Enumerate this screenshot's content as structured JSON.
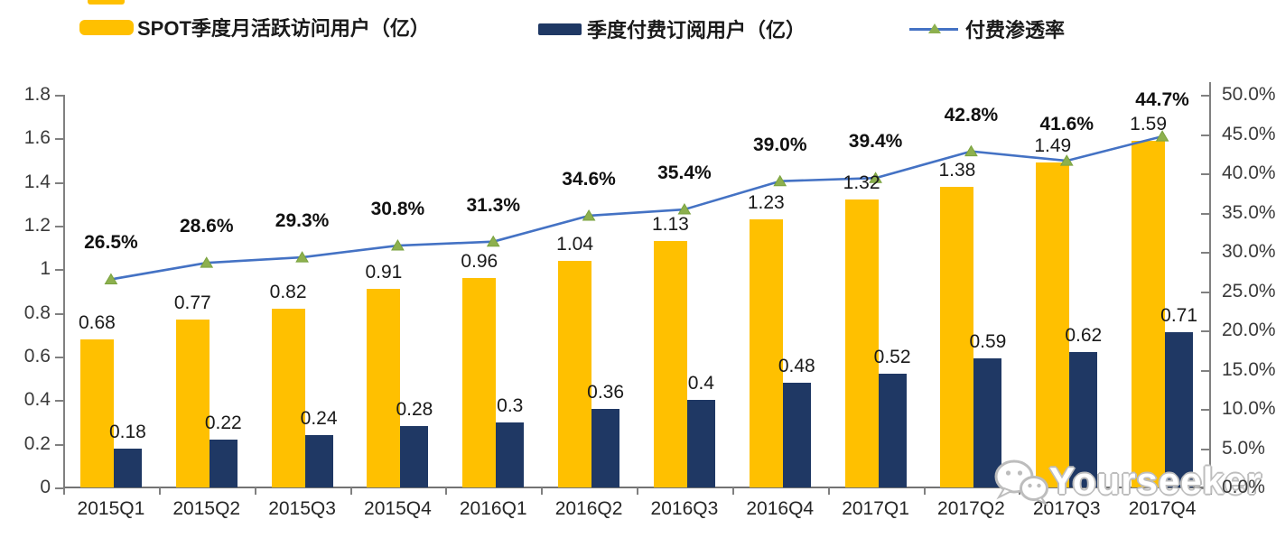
{
  "legend": {
    "items": [
      {
        "label": "SPOT季度月活跃访问用户（亿）",
        "swatch": "yellow-bar-swatch",
        "color": "#FFC000"
      },
      {
        "label": "季度付费订阅用户（亿）",
        "swatch": "navy-bar-swatch",
        "color": "#1F3864"
      },
      {
        "label": "付费渗透率",
        "swatch": "line-marker-swatch",
        "color": "#4472C4",
        "marker_color": "#8DB04E"
      }
    ]
  },
  "watermark": {
    "text": "Yourseeker",
    "icon": "wechat-icon"
  },
  "chart_data": {
    "type": "combo-bar-line",
    "title": "",
    "categories": [
      "2015Q1",
      "2015Q2",
      "2015Q3",
      "2015Q4",
      "2016Q1",
      "2016Q2",
      "2016Q3",
      "2016Q4",
      "2017Q1",
      "2017Q2",
      "2017Q3",
      "2017Q4"
    ],
    "series": [
      {
        "name": "SPOT季度月活跃访问用户（亿）",
        "type": "bar",
        "axis": "left",
        "color": "#FFC000",
        "values": [
          0.68,
          0.77,
          0.82,
          0.91,
          0.96,
          1.04,
          1.13,
          1.23,
          1.32,
          1.38,
          1.49,
          1.59
        ],
        "labels": [
          "0.68",
          "0.77",
          "0.82",
          "0.91",
          "0.96",
          "1.04",
          "1.13",
          "1.23",
          "1.32",
          "1.38",
          "1.49",
          "1.59"
        ]
      },
      {
        "name": "季度付费订阅用户（亿）",
        "type": "bar",
        "axis": "left",
        "color": "#1F3864",
        "values": [
          0.18,
          0.22,
          0.24,
          0.28,
          0.3,
          0.36,
          0.4,
          0.48,
          0.52,
          0.59,
          0.62,
          0.71
        ],
        "labels": [
          "0.18",
          "0.22",
          "0.24",
          "0.28",
          "0.3",
          "0.36",
          "0.4",
          "0.48",
          "0.52",
          "0.59",
          "0.62",
          "0.71"
        ]
      },
      {
        "name": "付费渗透率",
        "type": "line",
        "axis": "right",
        "color": "#4472C4",
        "marker": "triangle",
        "marker_color": "#8DB04E",
        "values": [
          26.5,
          28.6,
          29.3,
          30.8,
          31.3,
          34.6,
          35.4,
          39.0,
          39.4,
          42.8,
          41.6,
          44.7
        ],
        "labels": [
          "26.5%",
          "28.6%",
          "29.3%",
          "30.8%",
          "31.3%",
          "34.6%",
          "35.4%",
          "39.0%",
          "39.4%",
          "42.8%",
          "41.6%",
          "44.7%"
        ]
      }
    ],
    "left_axis": {
      "min": 0,
      "max": 1.8,
      "step": 0.2,
      "ticks": [
        "1.8",
        "1.6",
        "1.4",
        "1.2",
        "1",
        "0.8",
        "0.6",
        "0.4",
        "0.2",
        "0"
      ]
    },
    "right_axis": {
      "min": 0,
      "max": 50,
      "step": 5,
      "ticks": [
        "50.0%",
        "45.0%",
        "40.0%",
        "35.0%",
        "30.0%",
        "25.0%",
        "20.0%",
        "15.0%",
        "10.0%",
        "5.0%",
        "0.0%"
      ]
    },
    "grid": false,
    "legend_position": "top"
  }
}
